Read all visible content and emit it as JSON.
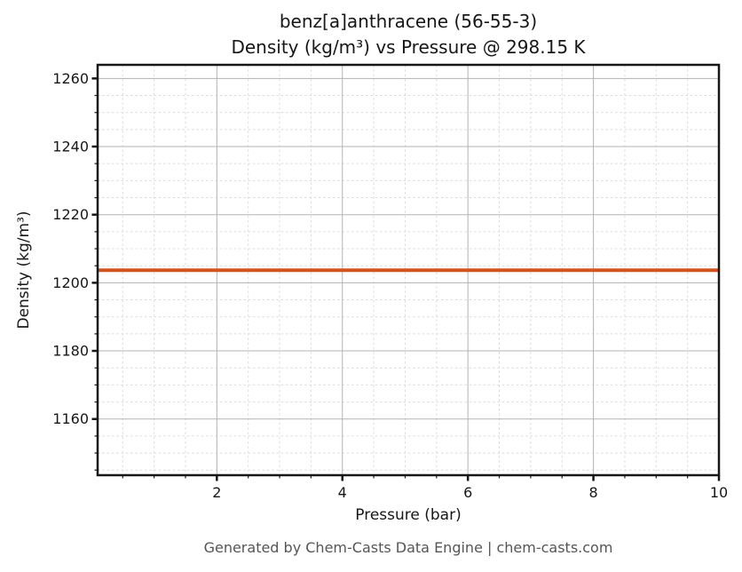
{
  "chart_data": {
    "type": "line",
    "title_line1": "benz[a]anthracene (56-55-3)",
    "title_line2": "Density (kg/m³) vs Pressure @ 298.15 K",
    "xlabel": "Pressure (bar)",
    "ylabel": "Density (kg/m³)",
    "xlim": [
      0.1,
      10
    ],
    "ylim": [
      1143.5,
      1264.0
    ],
    "xticks": [
      2,
      4,
      6,
      8,
      10
    ],
    "yticks": [
      1160,
      1180,
      1200,
      1220,
      1240,
      1260
    ],
    "x_minor_step": 0.5,
    "y_minor_step": 5,
    "grid": {
      "major": true,
      "minor": true,
      "major_color": "#b3b3b3",
      "minor_color": "#dbdbdb"
    },
    "axis_color": "#171717",
    "legend": "none",
    "series": [
      {
        "name": "Density",
        "color": "#d2541e",
        "linewidth": 4,
        "constant_value": 1203.7,
        "x": [
          0.1,
          10.0
        ],
        "y": [
          1203.7,
          1203.7
        ]
      }
    ]
  },
  "footer": {
    "text": "Generated by Chem-Casts Data Engine | chem-casts.com"
  }
}
